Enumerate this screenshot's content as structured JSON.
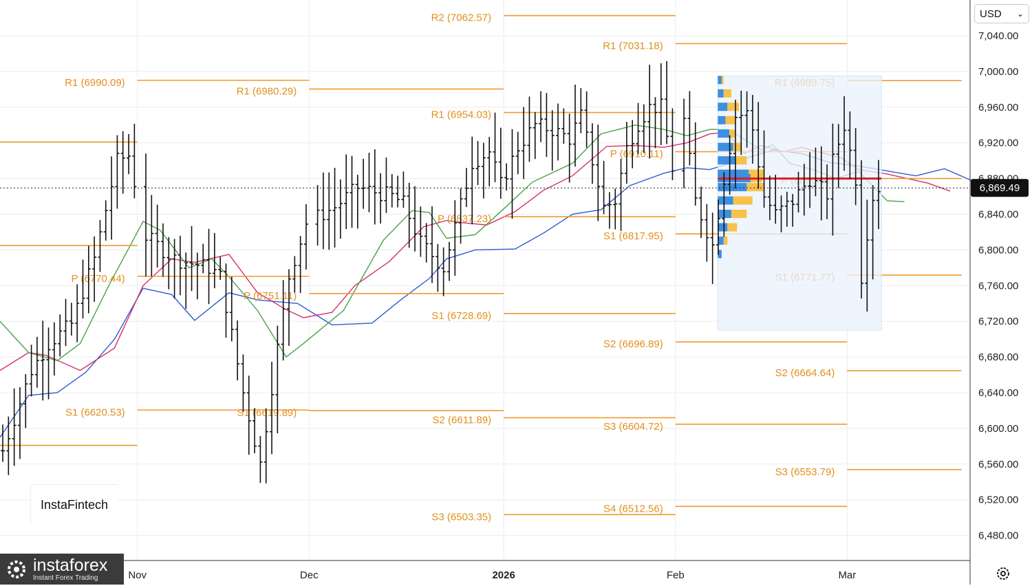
{
  "currency_selector": {
    "value": "USD",
    "chevron_icon": "chevron-down-icon"
  },
  "settings_icon": "gear-icon",
  "brand_a": {
    "text": "InstaFintech"
  },
  "brand_b": {
    "name": "instaforex",
    "tagline": "Instant Forex Trading",
    "icon": "instaforex-logo-icon"
  },
  "chart_data": {
    "type": "ohlc",
    "ylim": [
      6450,
      7080
    ],
    "y_ticks": [
      "7,040.00",
      "7,000.00",
      "6,960.00",
      "6,920.00",
      "6,880.00",
      "6,840.00",
      "6,800.00",
      "6,760.00",
      "6,720.00",
      "6,680.00",
      "6,640.00",
      "6,600.00",
      "6,560.00",
      "6,520.00",
      "6,480.00"
    ],
    "y_tick_values": [
      7040,
      7000,
      6960,
      6920,
      6880,
      6840,
      6800,
      6760,
      6720,
      6680,
      6640,
      6600,
      6560,
      6520,
      6480
    ],
    "x_ticks": [
      {
        "label": "Nov",
        "bar": 24,
        "bold": false
      },
      {
        "label": "Dec",
        "bar": 54,
        "bold": false
      },
      {
        "label": "2026",
        "bar": 88,
        "bold": true
      },
      {
        "label": "Feb",
        "bar": 118,
        "bold": false
      },
      {
        "label": "Mar",
        "bar": 148,
        "bold": false
      }
    ],
    "last_price": {
      "label": "6,869.49",
      "value": 6869.49
    },
    "pivot_levels": [
      {
        "name": "R1",
        "label": "R1 (6990.09)",
        "value": 6990.09,
        "start_bar": 24,
        "end_bar": 54
      },
      {
        "name": "P",
        "label": "P (6770.44)",
        "value": 6770.44,
        "start_bar": 24,
        "end_bar": 54
      },
      {
        "name": "S1",
        "label": "S1 (6620.53)",
        "value": 6620.53,
        "start_bar": 24,
        "end_bar": 54
      },
      {
        "name": "R1",
        "label": "R1 (6980.29)",
        "value": 6980.29,
        "start_bar": 54,
        "end_bar": 88
      },
      {
        "name": "P",
        "label": "P (6751.11)",
        "value": 6751.11,
        "start_bar": 54,
        "end_bar": 88
      },
      {
        "name": "S1",
        "label": "S1 (6619.89)",
        "value": 6619.89,
        "start_bar": 54,
        "end_bar": 88
      },
      {
        "name": "R2",
        "label": "R2 (7062.57)",
        "value": 7062.57,
        "start_bar": 88,
        "end_bar": 118
      },
      {
        "name": "R1",
        "label": "R1 (6954.03)",
        "value": 6954.03,
        "start_bar": 88,
        "end_bar": 118
      },
      {
        "name": "P",
        "label": "P (6837.23)",
        "value": 6837.23,
        "start_bar": 88,
        "end_bar": 118
      },
      {
        "name": "S1",
        "label": "S1 (6728.69)",
        "value": 6728.69,
        "start_bar": 88,
        "end_bar": 118
      },
      {
        "name": "S2",
        "label": "S2 (6611.89)",
        "value": 6611.89,
        "start_bar": 88,
        "end_bar": 118
      },
      {
        "name": "S3",
        "label": "S3 (6503.35)",
        "value": 6503.35,
        "start_bar": 88,
        "end_bar": 118
      },
      {
        "name": "R1",
        "label": "R1 (7031.18)",
        "value": 7031.18,
        "start_bar": 118,
        "end_bar": 148
      },
      {
        "name": "P",
        "label": "P (6910.11)",
        "value": 6910.11,
        "start_bar": 118,
        "end_bar": 148
      },
      {
        "name": "S1",
        "label": "S1 (6817.95)",
        "value": 6817.95,
        "start_bar": 118,
        "end_bar": 148
      },
      {
        "name": "S2",
        "label": "S2 (6696.89)",
        "value": 6696.89,
        "start_bar": 118,
        "end_bar": 148
      },
      {
        "name": "S3",
        "label": "S3 (6604.72)",
        "value": 6604.72,
        "start_bar": 118,
        "end_bar": 148
      },
      {
        "name": "S4",
        "label": "S4 (6512.56)",
        "value": 6512.56,
        "start_bar": 118,
        "end_bar": 148
      },
      {
        "name": "R1",
        "label": "R1 (6989.75)",
        "value": 6989.75,
        "start_bar": 148,
        "end_bar": 168
      },
      {
        "name": "P",
        "label": "P (6880.02)",
        "value": 6880.02,
        "start_bar": 148,
        "end_bar": 168
      },
      {
        "name": "S1",
        "label": "S1 (6771.77)",
        "value": 6771.77,
        "start_bar": 148,
        "end_bar": 168
      },
      {
        "name": "S2",
        "label": "S2 (6664.64)",
        "value": 6664.64,
        "start_bar": 148,
        "end_bar": 168
      },
      {
        "name": "S3",
        "label": "S3 (6553.79)",
        "value": 6553.79,
        "start_bar": 148,
        "end_bar": 168
      }
    ],
    "extra_levels": [
      {
        "value": 6921,
        "start_bar": 0,
        "end_bar": 24
      },
      {
        "value": 6805,
        "start_bar": 0,
        "end_bar": 24
      },
      {
        "value": 6581,
        "start_bar": 0,
        "end_bar": 24
      }
    ],
    "point_of_control": 6880.02,
    "volume_profile": {
      "y_from": 6710,
      "y_to": 6995,
      "rows": [
        {
          "y": 6990,
          "blue": 0.2,
          "yellow": 0.1
        },
        {
          "y": 6975,
          "blue": 0.3,
          "yellow": 0.4
        },
        {
          "y": 6960,
          "blue": 0.5,
          "yellow": 0.6
        },
        {
          "y": 6945,
          "blue": 0.4,
          "yellow": 0.5
        },
        {
          "y": 6930,
          "blue": 0.6,
          "yellow": 0.3
        },
        {
          "y": 6915,
          "blue": 0.8,
          "yellow": 0.4
        },
        {
          "y": 6900,
          "blue": 0.9,
          "yellow": 0.6
        },
        {
          "y": 6885,
          "blue": 1.6,
          "yellow": 0.8
        },
        {
          "y": 6880,
          "blue": 1.7,
          "yellow": 0.6
        },
        {
          "y": 6870,
          "blue": 1.5,
          "yellow": 0.9
        },
        {
          "y": 6855,
          "blue": 0.8,
          "yellow": 1.0
        },
        {
          "y": 6840,
          "blue": 0.7,
          "yellow": 0.8
        },
        {
          "y": 6825,
          "blue": 0.5,
          "yellow": 0.5
        },
        {
          "y": 6810,
          "blue": 0.3,
          "yellow": 0.2
        },
        {
          "y": 6795,
          "blue": 0.2,
          "yellow": 0.0
        }
      ]
    },
    "moving_averages": [
      {
        "color": "#2e5bd1",
        "anchors": [
          [
            0,
            6590
          ],
          [
            5,
            6637
          ],
          [
            10,
            6640
          ],
          [
            15,
            6663
          ],
          [
            20,
            6700
          ],
          [
            25,
            6757
          ],
          [
            30,
            6750
          ],
          [
            34,
            6721
          ],
          [
            40,
            6752
          ],
          [
            45,
            6744
          ],
          [
            52,
            6740
          ],
          [
            58,
            6716
          ],
          [
            65,
            6718
          ],
          [
            70,
            6744
          ],
          [
            75,
            6768
          ],
          [
            78,
            6790
          ],
          [
            83,
            6800
          ],
          [
            90,
            6801
          ],
          [
            95,
            6819
          ],
          [
            100,
            6840
          ],
          [
            105,
            6845
          ],
          [
            110,
            6872
          ],
          [
            116,
            6886
          ],
          [
            120,
            6892
          ],
          [
            124,
            6890
          ],
          [
            127,
            6896
          ],
          [
            135,
            6912
          ],
          [
            140,
            6908
          ],
          [
            145,
            6898
          ],
          [
            150,
            6894
          ],
          [
            160,
            6883
          ],
          [
            165,
            6891
          ],
          [
            170,
            6877
          ]
        ]
      },
      {
        "color": "#d5306a",
        "anchors": [
          [
            0,
            6665
          ],
          [
            5,
            6685
          ],
          [
            8,
            6682
          ],
          [
            14,
            6665
          ],
          [
            20,
            6690
          ],
          [
            25,
            6760
          ],
          [
            30,
            6790
          ],
          [
            34,
            6786
          ],
          [
            40,
            6795
          ],
          [
            45,
            6752
          ],
          [
            50,
            6733
          ],
          [
            53,
            6724
          ],
          [
            58,
            6730
          ],
          [
            62,
            6760
          ],
          [
            68,
            6787
          ],
          [
            74,
            6826
          ],
          [
            78,
            6833
          ],
          [
            80,
            6831
          ],
          [
            85,
            6828
          ],
          [
            90,
            6843
          ],
          [
            95,
            6867
          ],
          [
            100,
            6883
          ],
          [
            106,
            6916
          ],
          [
            111,
            6917
          ],
          [
            116,
            6915
          ],
          [
            120,
            6920
          ],
          [
            124,
            6930
          ],
          [
            127,
            6932
          ],
          [
            130,
            6908
          ],
          [
            133,
            6917
          ],
          [
            137,
            6910
          ],
          [
            140,
            6915
          ],
          [
            147,
            6903
          ],
          [
            150,
            6890
          ],
          [
            155,
            6885
          ],
          [
            162,
            6875
          ],
          [
            166,
            6866
          ]
        ]
      },
      {
        "color": "#4aa04a",
        "anchors": [
          [
            0,
            6720
          ],
          [
            5,
            6685
          ],
          [
            10,
            6676
          ],
          [
            14,
            6695
          ],
          [
            19,
            6760
          ],
          [
            25,
            6832
          ],
          [
            28,
            6822
          ],
          [
            33,
            6780
          ],
          [
            37,
            6790
          ],
          [
            40,
            6770
          ],
          [
            45,
            6732
          ],
          [
            50,
            6680
          ],
          [
            53,
            6695
          ],
          [
            60,
            6732
          ],
          [
            67,
            6811
          ],
          [
            72,
            6844
          ],
          [
            75,
            6842
          ],
          [
            78,
            6813
          ],
          [
            83,
            6817
          ],
          [
            88,
            6846
          ],
          [
            93,
            6876
          ],
          [
            100,
            6897
          ],
          [
            105,
            6930
          ],
          [
            111,
            6940
          ],
          [
            116,
            6935
          ],
          [
            120,
            6928
          ],
          [
            124,
            6935
          ],
          [
            127,
            6935
          ],
          [
            129,
            6928
          ],
          [
            133,
            6912
          ],
          [
            135,
            6918
          ],
          [
            138,
            6897
          ],
          [
            142,
            6890
          ],
          [
            146,
            6880
          ],
          [
            150,
            6888
          ],
          [
            155,
            6855
          ],
          [
            158,
            6854
          ]
        ]
      }
    ],
    "bar_anchors": [
      [
        0,
        6575
      ],
      [
        5,
        6665
      ],
      [
        8,
        6695
      ],
      [
        12,
        6717
      ],
      [
        16,
        6790
      ],
      [
        20,
        6900
      ],
      [
        22,
        6906
      ],
      [
        25,
        6815
      ],
      [
        30,
        6790
      ],
      [
        36,
        6780
      ],
      [
        38,
        6770
      ],
      [
        42,
        6640
      ],
      [
        45,
        6560
      ],
      [
        48,
        6690
      ],
      [
        50,
        6770
      ],
      [
        53,
        6830
      ],
      [
        58,
        6848
      ],
      [
        62,
        6870
      ],
      [
        65,
        6865
      ],
      [
        68,
        6860
      ],
      [
        70,
        6852
      ],
      [
        73,
        6808
      ],
      [
        77,
        6780
      ],
      [
        79,
        6826
      ],
      [
        82,
        6898
      ],
      [
        85,
        6910
      ],
      [
        87,
        6873
      ],
      [
        90,
        6915
      ],
      [
        93,
        6940
      ],
      [
        96,
        6935
      ],
      [
        99,
        6925
      ],
      [
        101,
        6950
      ],
      [
        103,
        6900
      ],
      [
        105,
        6848
      ],
      [
        107,
        6855
      ],
      [
        109,
        6914
      ],
      [
        111,
        6942
      ],
      [
        113,
        6960
      ],
      [
        115,
        6960
      ],
      [
        117,
        6892
      ],
      [
        119,
        6945
      ],
      [
        121,
        6855
      ],
      [
        124,
        6805
      ],
      [
        126,
        6880
      ],
      [
        128,
        6950
      ],
      [
        130,
        6953
      ],
      [
        131,
        6935
      ],
      [
        133,
        6860
      ],
      [
        135,
        6840
      ],
      [
        138,
        6855
      ],
      [
        141,
        6880
      ],
      [
        144,
        6862
      ],
      [
        145,
        6900
      ],
      [
        147,
        6940
      ],
      [
        149,
        6880
      ],
      [
        150,
        6770
      ],
      [
        151,
        6820
      ],
      [
        152,
        6860
      ],
      [
        153,
        6870
      ]
    ]
  }
}
